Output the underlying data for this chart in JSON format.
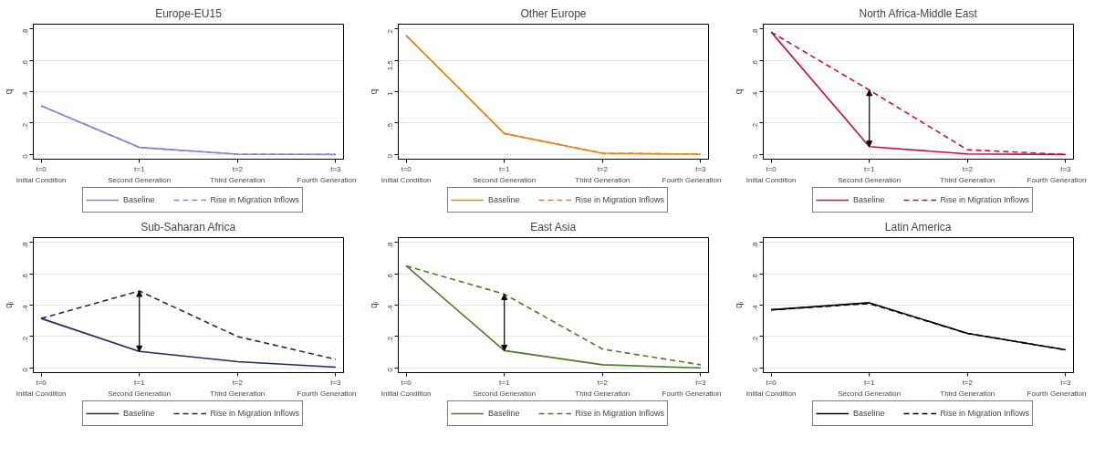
{
  "chart_data": [
    {
      "type": "line",
      "title": "Europe-EU15",
      "ylabel": "q",
      "categories": [
        "t=0\nInitial Condition",
        "t=1\nSecond Generation",
        "t=2\nThird Generation",
        "t=3\nFourth Generation"
      ],
      "ylim": [
        -0.03,
        0.83
      ],
      "yticks": [
        0,
        {
          "value": 0.2,
          "label": ".2"
        },
        {
          "value": 0.4,
          "label": ".4"
        },
        {
          "value": 0.6,
          "label": ".6"
        },
        {
          "value": 0.8,
          "label": ".8"
        }
      ],
      "grid": "y",
      "legend": "bottom",
      "series": [
        {
          "name": "Baseline",
          "color": "#8c80d8",
          "line_style": "solid",
          "values": [
            0.31,
            0.045,
            0.002,
            0.0
          ]
        },
        {
          "name": "Rise in Migration Inflows",
          "color": "#8c80d8",
          "line_style": "dashed",
          "values": [
            0.31,
            0.045,
            0.002,
            0.0
          ]
        }
      ]
    },
    {
      "type": "line",
      "title": "Other Europe",
      "ylabel": "q",
      "categories": [
        "t=0\nInitial Condition",
        "t=1\nSecond Generation",
        "t=2\nThird Generation",
        "t=3\nFourth Generation"
      ],
      "ylim": [
        -0.08,
        2.08
      ],
      "yticks": [
        0,
        {
          "value": 0.5,
          "label": ".5"
        },
        1,
        1.5,
        2
      ],
      "grid": "y",
      "legend": "bottom",
      "series": [
        {
          "name": "Baseline",
          "color": "#e8840c",
          "line_style": "solid",
          "values": [
            1.9,
            0.33,
            0.015,
            0.0
          ]
        },
        {
          "name": "Rise in Migration Inflows",
          "color": "#e8840c",
          "line_style": "dashed",
          "values": [
            1.9,
            0.33,
            0.015,
            0.0
          ]
        }
      ]
    },
    {
      "type": "line",
      "title": "North Africa-Middle East",
      "ylabel": "q",
      "categories": [
        "t=0\nInitial Condition",
        "t=1\nSecond Generation",
        "t=2\nThird Generation",
        "t=3\nFourth Generation"
      ],
      "ylim": [
        -0.03,
        0.83
      ],
      "yticks": [
        0,
        {
          "value": 0.2,
          "label": ".2"
        },
        {
          "value": 0.4,
          "label": ".4"
        },
        {
          "value": 0.6,
          "label": ".6"
        },
        {
          "value": 0.8,
          "label": ".8"
        }
      ],
      "grid": "y",
      "legend": "bottom",
      "series": [
        {
          "name": "Baseline",
          "color": "#c8103c",
          "line_style": "solid",
          "values": [
            0.78,
            0.05,
            0.003,
            0.0
          ]
        },
        {
          "name": "Rise in Migration Inflows",
          "color": "#c8103c",
          "line_style": "dashed",
          "values": [
            0.78,
            0.41,
            0.03,
            0.0
          ]
        }
      ]
    },
    {
      "type": "line",
      "title": "Sub-Saharan Africa",
      "ylabel": "qᵢ",
      "categories": [
        "t=0\nInitial Condition",
        "t=1\nSecond Generation",
        "t=2\nThird Generation",
        "t=3\nFourth Generation"
      ],
      "ylim": [
        -0.03,
        0.83
      ],
      "yticks": [
        0,
        {
          "value": 0.2,
          "label": ".2"
        },
        {
          "value": 0.4,
          "label": ".4"
        },
        {
          "value": 0.6,
          "label": ".6"
        },
        {
          "value": 0.8,
          "label": ".8"
        }
      ],
      "grid": "y",
      "legend": "bottom",
      "series": [
        {
          "name": "Baseline",
          "color": "#1c2a5c",
          "line_style": "solid",
          "values": [
            0.315,
            0.105,
            0.04,
            0.005
          ]
        },
        {
          "name": "Rise in Migration Inflows",
          "color": "#1c2a5c",
          "line_style": "dashed",
          "values": [
            0.315,
            0.49,
            0.2,
            0.055
          ]
        }
      ]
    },
    {
      "type": "line",
      "title": "East Asia",
      "ylabel": "qᵢ",
      "categories": [
        "t=0\nInitial Condition",
        "t=1\nSecond Generation",
        "t=2\nThird Generation",
        "t=3\nFourth Generation"
      ],
      "ylim": [
        -0.03,
        0.83
      ],
      "yticks": [
        0,
        {
          "value": 0.2,
          "label": ".2"
        },
        {
          "value": 0.4,
          "label": ".4"
        },
        {
          "value": 0.6,
          "label": ".6"
        },
        {
          "value": 0.8,
          "label": ".8"
        }
      ],
      "grid": "y",
      "legend": "bottom",
      "series": [
        {
          "name": "Baseline",
          "color": "#4e7a28",
          "line_style": "solid",
          "values": [
            0.65,
            0.11,
            0.02,
            0.0
          ]
        },
        {
          "name": "Rise in Migration Inflows",
          "color": "#4e7a28",
          "line_style": "dashed",
          "values": [
            0.65,
            0.47,
            0.12,
            0.02
          ]
        }
      ]
    },
    {
      "type": "line",
      "title": "Latin America",
      "ylabel": "qᵢ",
      "categories": [
        "t=0\nInitial Condition",
        "t=1\nSecond Generation",
        "t=2\nThird Generation",
        "t=3\nFourth Generation"
      ],
      "ylim": [
        -0.03,
        0.83
      ],
      "yticks": [
        0,
        {
          "value": 0.2,
          "label": ".2"
        },
        {
          "value": 0.4,
          "label": ".4"
        },
        {
          "value": 0.6,
          "label": ".6"
        },
        {
          "value": 0.8,
          "label": ".8"
        }
      ],
      "grid": "y",
      "legend": "bottom",
      "series": [
        {
          "name": "Baseline",
          "color": "#000000",
          "line_style": "solid",
          "values": [
            0.37,
            0.415,
            0.22,
            0.115
          ]
        },
        {
          "name": "Rise in Migration Inflows",
          "color": "#000000",
          "line_style": "dashed",
          "values": [
            0.37,
            0.41,
            0.22,
            0.115
          ]
        }
      ]
    }
  ]
}
